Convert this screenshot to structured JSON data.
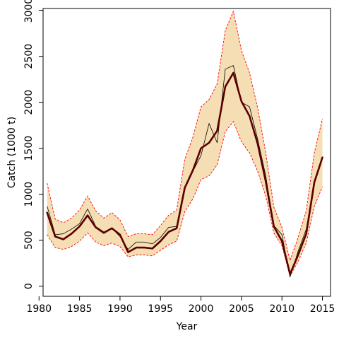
{
  "chart_data": {
    "type": "line",
    "title": "",
    "xlabel": "Year",
    "ylabel": "Catch (1000 t)",
    "xlim": [
      1980.5,
      2016
    ],
    "ylim": [
      -110,
      3020
    ],
    "xticks": [
      1980,
      1985,
      1990,
      1995,
      2000,
      2005,
      2010,
      2015
    ],
    "xtick_labels": [
      "1980",
      "1985",
      "1990",
      "1995",
      "2000",
      "2005",
      "2010",
      "2015"
    ],
    "yticks": [
      0,
      500,
      1000,
      1500,
      2000,
      2500,
      3000
    ],
    "ytick_labels": [
      "0",
      "500",
      "1000",
      "1500",
      "2000",
      "2500",
      "3000"
    ],
    "grid": false,
    "legend": "none",
    "x": [
      1981,
      1982,
      1983,
      1984,
      1985,
      1986,
      1987,
      1988,
      1989,
      1990,
      1991,
      1992,
      1993,
      1994,
      1995,
      1996,
      1997,
      1998,
      1999,
      2000,
      2001,
      2002,
      2003,
      2004,
      2005,
      2006,
      2007,
      2008,
      2009,
      2010,
      2011,
      2012,
      2013,
      2014,
      2015
    ],
    "series": [
      {
        "role": "upper-bound",
        "values": [
          1120,
          730,
          690,
          740,
          830,
          980,
          820,
          740,
          800,
          720,
          540,
          570,
          570,
          560,
          660,
          770,
          830,
          1380,
          1620,
          1950,
          2030,
          2200,
          2780,
          2990,
          2560,
          2320,
          1940,
          1450,
          860,
          640,
          280,
          530,
          820,
          1450,
          1820
        ]
      },
      {
        "role": "lower-bound",
        "values": [
          560,
          420,
          400,
          430,
          490,
          580,
          480,
          440,
          470,
          430,
          320,
          340,
          340,
          330,
          390,
          450,
          490,
          810,
          950,
          1160,
          1200,
          1320,
          1680,
          1790,
          1570,
          1450,
          1250,
          980,
          580,
          440,
          110,
          270,
          470,
          870,
          1080
        ]
      },
      {
        "role": "observed",
        "values": [
          870,
          560,
          570,
          620,
          680,
          840,
          650,
          590,
          630,
          540,
          400,
          480,
          480,
          460,
          530,
          640,
          650,
          1070,
          1250,
          1420,
          1770,
          1560,
          2360,
          2400,
          2000,
          1950,
          1600,
          1200,
          660,
          560,
          100,
          380,
          620,
          1130,
          1400
        ]
      },
      {
        "role": "estimate",
        "values": [
          800,
          540,
          510,
          570,
          650,
          770,
          640,
          580,
          630,
          560,
          370,
          420,
          420,
          410,
          490,
          590,
          630,
          1070,
          1260,
          1500,
          1560,
          1690,
          2170,
          2320,
          2010,
          1850,
          1550,
          1140,
          650,
          490,
          130,
          340,
          570,
          1130,
          1400
        ]
      }
    ],
    "colors": {
      "band_fill": "#f5deb3",
      "band_edge": "#ff0000",
      "estimate_line": "#5a0000",
      "observed_line": "#000000",
      "axis": "#000000"
    }
  }
}
